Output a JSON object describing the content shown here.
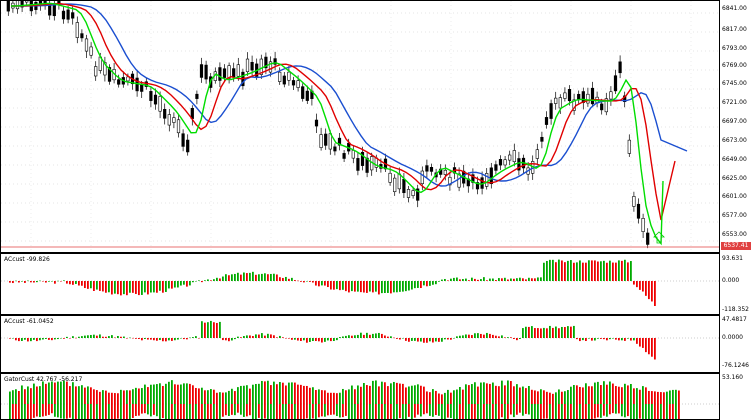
{
  "main_chart": {
    "price_labels": [
      "6841.00",
      "6817.00",
      "6793.00",
      "6769.00",
      "6745.00",
      "6721.00",
      "6697.00",
      "6673.00",
      "6649.00",
      "6625.00",
      "6601.00",
      "6577.00",
      "6553.00"
    ],
    "current_price": "6537.41",
    "ma_colors": {
      "green": "#00dd00",
      "red": "#e00000",
      "blue": "#1b4fd0"
    },
    "candle_color": "#000000",
    "price_line_color": "#e04040",
    "arrow_up_color": "#00cc00"
  },
  "ind1": {
    "label": "ACcust -99.826",
    "scale": [
      "93.631",
      "0.000",
      "-118.352"
    ]
  },
  "ind2": {
    "label": "ACcust -61.0452",
    "scale": [
      "47.4817",
      "0.0000",
      "-76.1246"
    ]
  },
  "ind3": {
    "label": "GatorCust 42.767 -56.217",
    "scale": [
      "53.160"
    ]
  },
  "colors": {
    "up": "#00aa00",
    "down": "#ee0000"
  }
}
